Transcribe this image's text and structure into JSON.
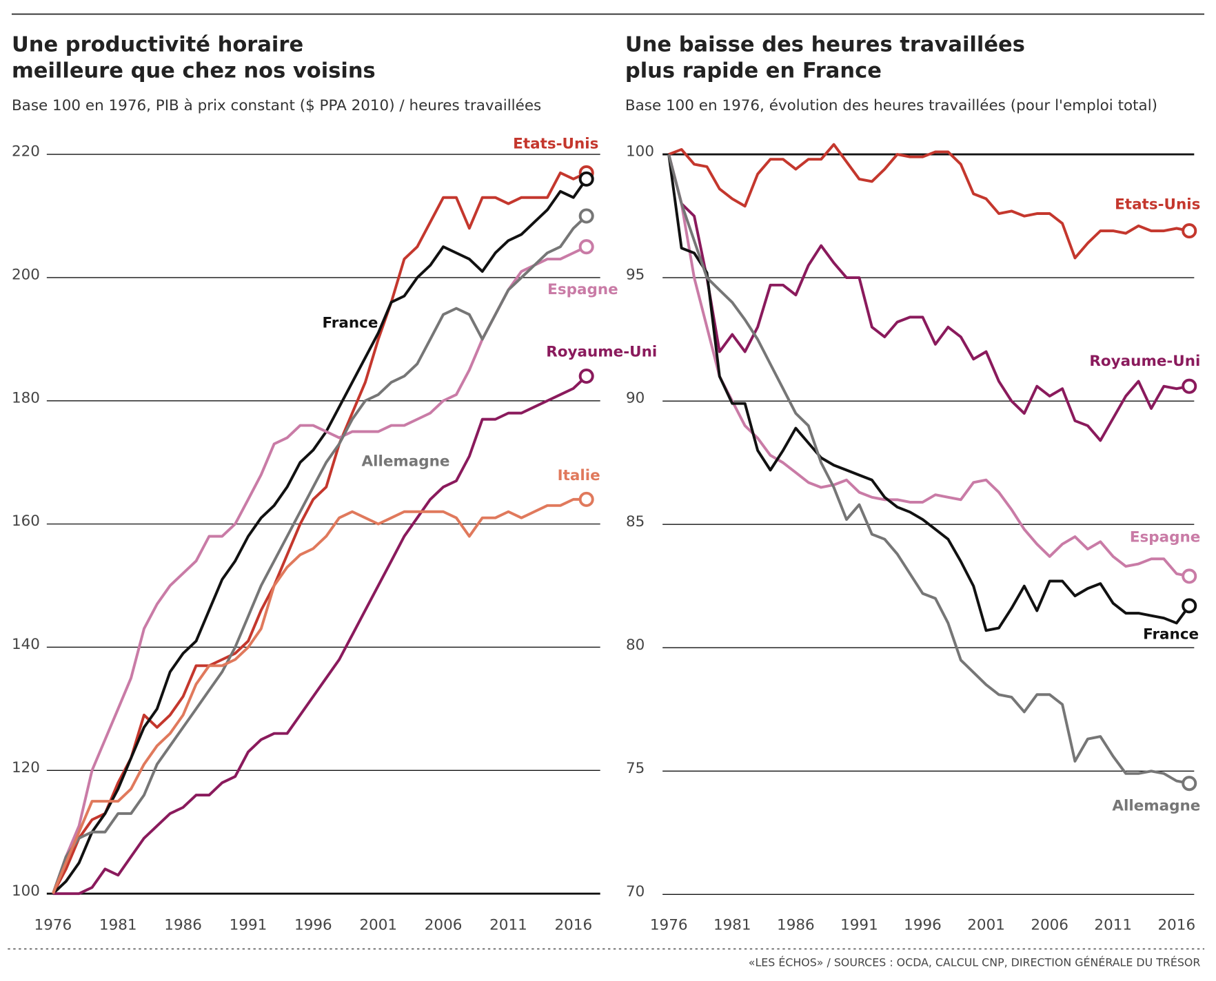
{
  "chart_data": [
    {
      "type": "line",
      "title": [
        "Une productivité horaire",
        "meilleure que chez nos voisins"
      ],
      "subtitle": "Base 100 en 1976, PIB à prix constant ($ PPA 2010) / heures travaillées",
      "x": [
        1976,
        1977,
        1978,
        1979,
        1980,
        1981,
        1982,
        1983,
        1984,
        1985,
        1986,
        1987,
        1988,
        1989,
        1990,
        1991,
        1992,
        1993,
        1994,
        1995,
        1996,
        1997,
        1998,
        1999,
        2000,
        2001,
        2002,
        2003,
        2004,
        2005,
        2006,
        2007,
        2008,
        2009,
        2010,
        2011,
        2012,
        2013,
        2014,
        2015,
        2016,
        2017
      ],
      "xlim": [
        1976,
        2018
      ],
      "xticks": [
        1976,
        1981,
        1986,
        1991,
        1996,
        2001,
        2006,
        2011,
        2016
      ],
      "ylim": [
        100,
        220
      ],
      "yticks": [
        100,
        120,
        140,
        160,
        180,
        200,
        220
      ],
      "grid": true,
      "series": [
        {
          "name": "Etats-Unis",
          "color": "#c4372d",
          "values": [
            100,
            104,
            109,
            112,
            113,
            118,
            122,
            129,
            127,
            129,
            132,
            137,
            137,
            138,
            139,
            141,
            146,
            150,
            155,
            160,
            164,
            166,
            173,
            178,
            183,
            190,
            196,
            203,
            205,
            209,
            213,
            213,
            208,
            213,
            213,
            212,
            213,
            213,
            213,
            217,
            216,
            217
          ]
        },
        {
          "name": "France",
          "color": "#111111",
          "values": [
            100,
            102,
            105,
            110,
            113,
            117,
            122,
            127,
            130,
            136,
            139,
            141,
            146,
            151,
            154,
            158,
            161,
            163,
            166,
            170,
            172,
            175,
            179,
            183,
            187,
            191,
            196,
            197,
            200,
            202,
            205,
            204,
            203,
            201,
            204,
            206,
            207,
            209,
            211,
            214,
            213,
            216
          ]
        },
        {
          "name": "Espagne",
          "color": "#c97ba6",
          "values": [
            100,
            106,
            111,
            120,
            125,
            130,
            135,
            143,
            147,
            150,
            152,
            154,
            158,
            158,
            160,
            164,
            168,
            173,
            174,
            176,
            176,
            175,
            174,
            175,
            175,
            175,
            176,
            176,
            177,
            178,
            180,
            181,
            185,
            190,
            194,
            198,
            201,
            202,
            203,
            203,
            204,
            205
          ]
        },
        {
          "name": "Royaume-Uni",
          "color": "#8a1a5c",
          "values": [
            100,
            100,
            100,
            101,
            104,
            103,
            106,
            109,
            111,
            113,
            114,
            116,
            116,
            118,
            119,
            123,
            125,
            126,
            126,
            129,
            132,
            135,
            138,
            142,
            146,
            150,
            154,
            158,
            161,
            164,
            166,
            167,
            171,
            177,
            177,
            178,
            178,
            179,
            180,
            181,
            182,
            184
          ]
        },
        {
          "name": "Allemagne",
          "color": "#767676",
          "values": [
            100,
            106,
            109,
            110,
            110,
            113,
            113,
            116,
            121,
            124,
            127,
            130,
            133,
            136,
            140,
            145,
            150,
            154,
            158,
            162,
            166,
            170,
            173,
            177,
            180,
            181,
            183,
            184,
            186,
            190,
            194,
            195,
            194,
            190,
            194,
            198,
            200,
            202,
            204,
            205,
            208,
            210
          ]
        },
        {
          "name": "Italie",
          "color": "#e0795c",
          "values": [
            100,
            105,
            110,
            115,
            115,
            115,
            117,
            121,
            124,
            126,
            129,
            134,
            137,
            137,
            138,
            140,
            143,
            150,
            153,
            155,
            156,
            158,
            161,
            162,
            161,
            160,
            161,
            162,
            162,
            162,
            162,
            161,
            158,
            161,
            161,
            162,
            161,
            162,
            163,
            163,
            164,
            164
          ]
        }
      ]
    },
    {
      "type": "line",
      "title": [
        "Une baisse des heures travaillées",
        "plus rapide en France"
      ],
      "subtitle": "Base 100 en 1976, évolution des heures travaillées (pour l'emploi total)",
      "x": [
        1976,
        1977,
        1978,
        1979,
        1980,
        1981,
        1982,
        1983,
        1984,
        1985,
        1986,
        1987,
        1988,
        1989,
        1990,
        1991,
        1992,
        1993,
        1994,
        1995,
        1996,
        1997,
        1998,
        1999,
        2000,
        2001,
        2002,
        2003,
        2004,
        2005,
        2006,
        2007,
        2008,
        2009,
        2010,
        2011,
        2012,
        2013,
        2014,
        2015,
        2016,
        2017
      ],
      "xlim": [
        1976,
        2018
      ],
      "xticks": [
        1976,
        1981,
        1986,
        1991,
        1996,
        2001,
        2006,
        2011,
        2016
      ],
      "ylim": [
        70,
        100
      ],
      "yticks": [
        70,
        75,
        80,
        85,
        90,
        95,
        100
      ],
      "grid": true,
      "series": [
        {
          "name": "Etats-Unis",
          "color": "#c4372d",
          "values": [
            100,
            100.2,
            99.6,
            99.5,
            98.6,
            98.2,
            97.9,
            99.2,
            99.8,
            99.8,
            99.4,
            99.8,
            99.8,
            100.4,
            99.7,
            99.0,
            98.9,
            99.4,
            100,
            99.9,
            99.9,
            100.1,
            100.1,
            99.6,
            98.4,
            98.2,
            97.6,
            97.7,
            97.5,
            97.6,
            97.6,
            97.2,
            95.8,
            96.4,
            96.9,
            96.9,
            96.8,
            97.1,
            96.9,
            96.9,
            97.0,
            96.9
          ]
        },
        {
          "name": "Royaume-Uni",
          "color": "#8a1a5c",
          "values": [
            100,
            98,
            97.5,
            95,
            92,
            92.7,
            92,
            93,
            94.7,
            94.7,
            94.3,
            95.5,
            96.3,
            95.6,
            95,
            95,
            93,
            92.6,
            93.2,
            93.4,
            93.4,
            92.3,
            93,
            92.6,
            91.7,
            92,
            90.8,
            90,
            89.5,
            90.6,
            90.2,
            90.5,
            89.2,
            89,
            88.4,
            89.3,
            90.2,
            90.8,
            89.7,
            90.6,
            90.5,
            90.6
          ]
        },
        {
          "name": "Espagne",
          "color": "#c97ba6",
          "values": [
            100,
            98,
            95,
            93,
            91,
            90,
            89,
            88.5,
            87.8,
            87.5,
            87.1,
            86.7,
            86.5,
            86.6,
            86.8,
            86.3,
            86.1,
            86.0,
            86.0,
            85.9,
            85.9,
            86.2,
            86.1,
            86.0,
            86.7,
            86.8,
            86.3,
            85.6,
            84.8,
            84.2,
            83.7,
            84.2,
            84.5,
            84.0,
            84.3,
            83.7,
            83.3,
            83.4,
            83.6,
            83.6,
            83.0,
            82.9
          ]
        },
        {
          "name": "France",
          "color": "#111111",
          "values": [
            100,
            96.2,
            96.0,
            95.2,
            91,
            89.9,
            89.9,
            88,
            87.2,
            88,
            88.9,
            88.3,
            87.7,
            87.4,
            87.2,
            87.0,
            86.8,
            86.1,
            85.7,
            85.5,
            85.2,
            84.8,
            84.4,
            83.5,
            82.5,
            80.7,
            80.8,
            81.6,
            82.5,
            81.5,
            82.7,
            82.7,
            82.1,
            82.4,
            82.6,
            81.8,
            81.4,
            81.4,
            81.3,
            81.2,
            81.0,
            81.7
          ]
        },
        {
          "name": "Allemagne",
          "color": "#767676",
          "values": [
            100,
            98,
            96.5,
            95,
            94.5,
            94,
            93.3,
            92.5,
            91.5,
            90.5,
            89.5,
            89,
            87.5,
            86.5,
            85.2,
            85.8,
            84.6,
            84.4,
            83.8,
            83.0,
            82.2,
            82.0,
            81.0,
            79.5,
            79.0,
            78.5,
            78.1,
            78.0,
            77.4,
            78.1,
            78.1,
            77.7,
            75.4,
            76.3,
            76.4,
            75.6,
            74.9,
            74.9,
            75.0,
            74.9,
            74.6,
            74.5
          ]
        }
      ]
    }
  ],
  "source": "«LES ÉCHOS» / SOURCES : OCDA, CALCUL CNP, DIRECTION GÉNÉRALE DU TRÉSOR"
}
